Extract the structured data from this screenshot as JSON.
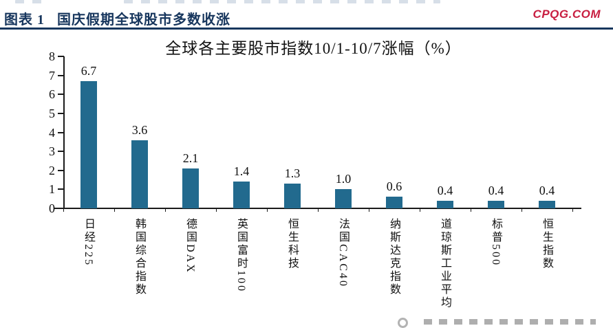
{
  "header": {
    "figure_label": "图表 1",
    "figure_title": "国庆假期全球股市多数收涨",
    "site": "CPQG.COM"
  },
  "colors": {
    "header_navy": "#17365D",
    "site_red": "#C81E41",
    "bar_teal": "#226A8E",
    "axis_black": "#1A1A1A"
  },
  "chart_data": {
    "type": "bar",
    "title": "全球各主要股市指数10/1-10/7涨幅（%）",
    "categories": [
      "日经225",
      "韩国综合指数",
      "德国DAX",
      "英国富时100",
      "恒生科技",
      "法国CAC40",
      "纳斯达克指数",
      "道琼斯工业平均",
      "标普500",
      "恒生指数"
    ],
    "values": [
      6.7,
      3.6,
      2.1,
      1.4,
      1.3,
      1.0,
      0.6,
      0.4,
      0.4,
      0.4
    ],
    "value_labels": [
      "6.7",
      "3.6",
      "2.1",
      "1.4",
      "1.3",
      "1.0",
      "0.6",
      "0.4",
      "0.4",
      "0.4"
    ],
    "xlabel": "",
    "ylabel": "",
    "ylim": [
      0,
      8
    ],
    "yticks": [
      0,
      1,
      2,
      3,
      4,
      5,
      6,
      7,
      8
    ],
    "grid": false,
    "legend": "none",
    "bar_color": "#226A8E",
    "value_labels_shown": true
  }
}
